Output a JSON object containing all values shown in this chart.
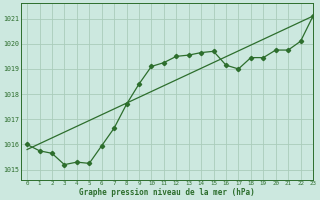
{
  "title": "Graphe pression niveau de la mer (hPa)",
  "bg_color": "#cce8df",
  "grid_color": "#aaccbb",
  "line_color": "#2d6e2d",
  "xlim": [
    -0.5,
    23
  ],
  "ylim": [
    1014.6,
    1021.6
  ],
  "xticks": [
    0,
    1,
    2,
    3,
    4,
    5,
    6,
    7,
    8,
    9,
    10,
    11,
    12,
    13,
    14,
    15,
    16,
    17,
    18,
    19,
    20,
    21,
    22,
    23
  ],
  "yticks": [
    1015,
    1016,
    1017,
    1018,
    1019,
    1020,
    1021
  ],
  "series1_x": [
    0,
    1,
    2,
    3,
    4,
    5,
    6,
    7,
    8,
    9,
    10,
    11,
    12,
    13,
    14,
    15,
    16,
    17,
    18,
    19,
    20,
    21,
    22,
    23
  ],
  "series1_y": [
    1016.0,
    1015.75,
    1015.65,
    1015.2,
    1015.3,
    1015.25,
    1015.95,
    1016.65,
    1017.6,
    1018.4,
    1019.1,
    1019.25,
    1019.5,
    1019.55,
    1019.65,
    1019.7,
    1019.15,
    1019.0,
    1019.45,
    1019.45,
    1019.75,
    1019.75,
    1020.1,
    1021.1
  ],
  "series2_x": [
    0,
    23
  ],
  "series2_y": [
    1015.8,
    1021.1
  ]
}
